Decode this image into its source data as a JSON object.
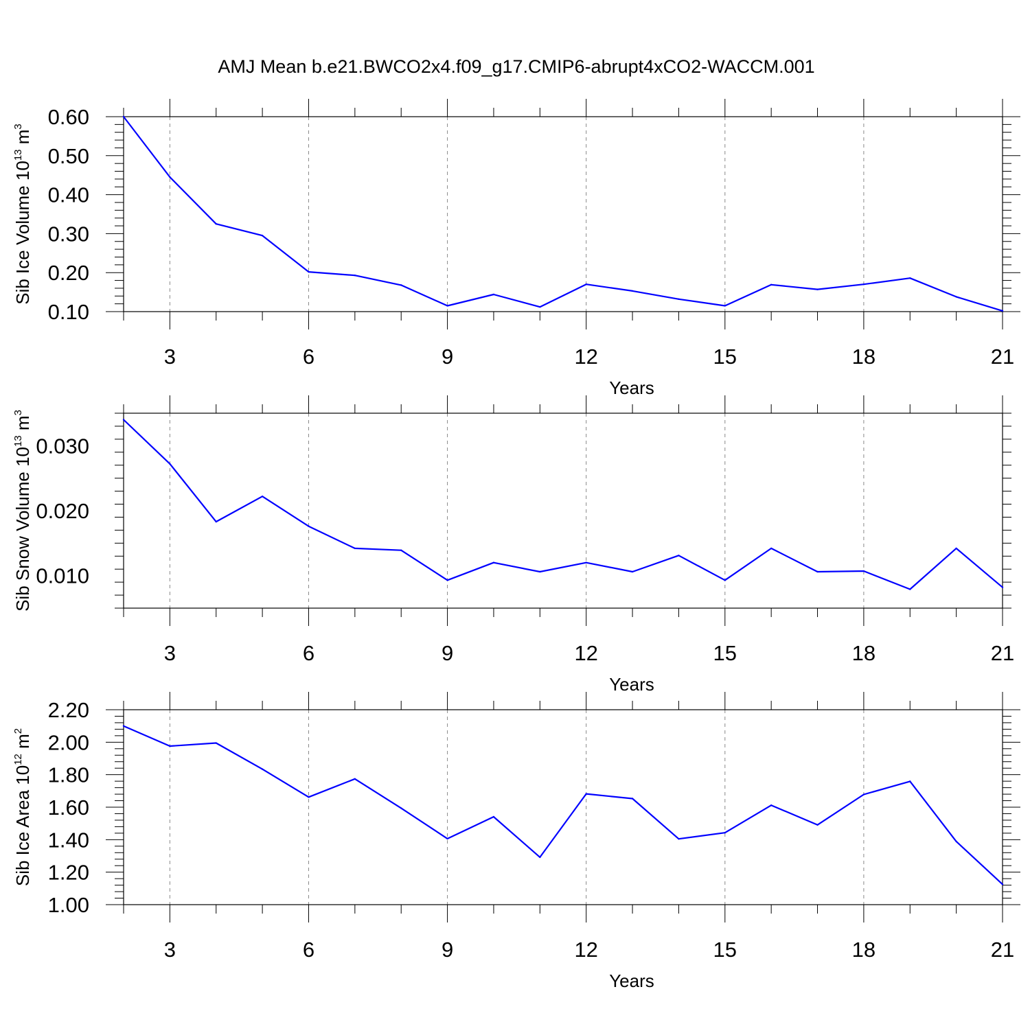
{
  "title": "AMJ Mean b.e21.BWCO2x4.f09_g17.CMIP6-abrupt4xCO2-WACCM.001",
  "colors": {
    "line": "#0000ff",
    "grid": "#888888",
    "axis": "#000000"
  },
  "chart_data": [
    {
      "type": "line",
      "xlabel": "Years",
      "ylabel": {
        "text": "Sib Ice Volume 10",
        "exponent": "13",
        "unit": "m",
        "unit_exponent": "3"
      },
      "xlim": [
        2,
        21
      ],
      "ylim": [
        0.1,
        0.6
      ],
      "xticks": [
        3,
        6,
        9,
        12,
        15,
        18,
        21
      ],
      "yticks": [
        0.1,
        0.2,
        0.3,
        0.4,
        0.5,
        0.6
      ],
      "ytick_labels": [
        "0.10",
        "0.20",
        "0.30",
        "0.40",
        "0.50",
        "0.60"
      ],
      "x": [
        2,
        3,
        4,
        5,
        6,
        7,
        8,
        9,
        10,
        11,
        12,
        13,
        14,
        15,
        16,
        17,
        18,
        19,
        20,
        21
      ],
      "values": [
        0.6,
        0.445,
        0.325,
        0.295,
        0.202,
        0.193,
        0.168,
        0.115,
        0.144,
        0.112,
        0.17,
        0.153,
        0.132,
        0.115,
        0.169,
        0.157,
        0.17,
        0.186,
        0.138,
        0.102
      ]
    },
    {
      "type": "line",
      "xlabel": "Years",
      "ylabel": {
        "text": "Sib Snow Volume 10",
        "exponent": "13",
        "unit": "m",
        "unit_exponent": "3"
      },
      "xlim": [
        2,
        21
      ],
      "ylim": [
        0.005,
        0.035
      ],
      "xticks": [
        3,
        6,
        9,
        12,
        15,
        18,
        21
      ],
      "yticks": [
        0.01,
        0.02,
        0.03
      ],
      "ytick_labels": [
        "0.010",
        "0.020",
        "0.030"
      ],
      "x": [
        2,
        3,
        4,
        5,
        6,
        7,
        8,
        9,
        10,
        11,
        12,
        13,
        14,
        15,
        16,
        17,
        18,
        19,
        20,
        21
      ],
      "values": [
        0.034,
        0.0272,
        0.0183,
        0.0222,
        0.0176,
        0.0142,
        0.0139,
        0.0093,
        0.012,
        0.0106,
        0.012,
        0.0106,
        0.0131,
        0.0093,
        0.0142,
        0.0106,
        0.0107,
        0.0079,
        0.0142,
        0.0082
      ]
    },
    {
      "type": "line",
      "xlabel": "Years",
      "ylabel": {
        "text": "Sib Ice Area 10",
        "exponent": "12",
        "unit": "m",
        "unit_exponent": "2"
      },
      "xlim": [
        2,
        21
      ],
      "ylim": [
        1.0,
        2.2
      ],
      "xticks": [
        3,
        6,
        9,
        12,
        15,
        18,
        21
      ],
      "yticks": [
        1.0,
        1.2,
        1.4,
        1.6,
        1.8,
        2.0,
        2.2
      ],
      "ytick_labels": [
        "1.00",
        "1.20",
        "1.40",
        "1.60",
        "1.80",
        "2.00",
        "2.20"
      ],
      "x": [
        2,
        3,
        4,
        5,
        6,
        7,
        8,
        9,
        10,
        11,
        12,
        13,
        14,
        15,
        16,
        17,
        18,
        19,
        20,
        21
      ],
      "values": [
        2.1,
        1.976,
        1.995,
        1.834,
        1.662,
        1.774,
        1.594,
        1.406,
        1.541,
        1.292,
        1.682,
        1.653,
        1.405,
        1.443,
        1.612,
        1.491,
        1.678,
        1.759,
        1.389,
        1.125
      ]
    }
  ]
}
